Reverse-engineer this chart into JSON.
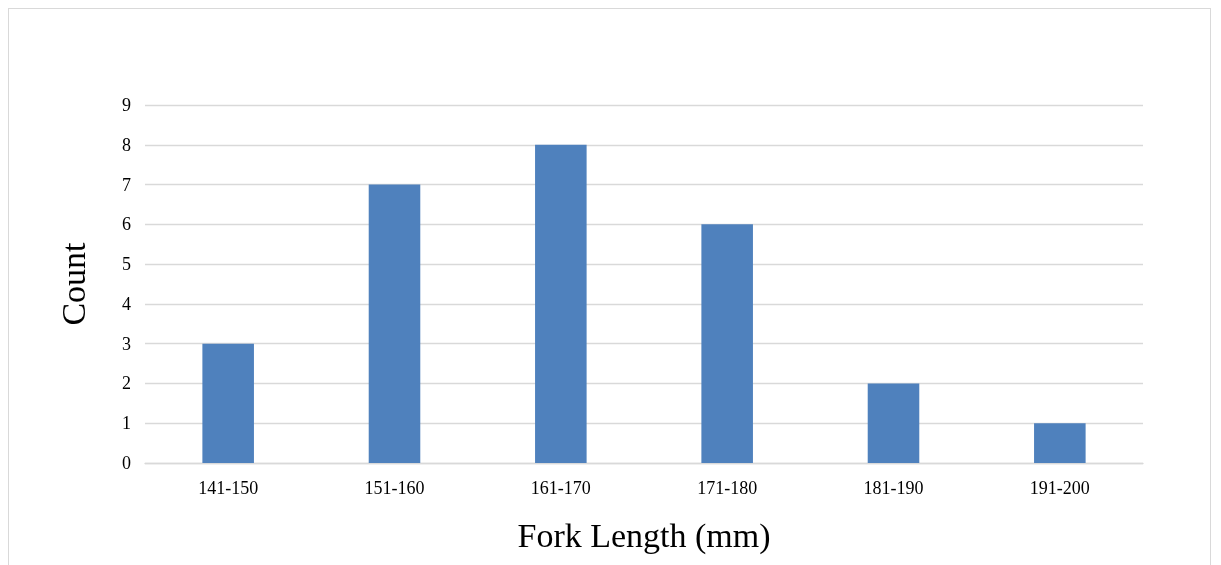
{
  "chart_data": {
    "type": "bar",
    "xlabel": "Fork Length (mm)",
    "ylabel": "Count",
    "categories": [
      "141-150",
      "151-160",
      "161-170",
      "171-180",
      "181-190",
      "191-200"
    ],
    "values": [
      3,
      7,
      8,
      6,
      2,
      1
    ],
    "color": "#4f81bd",
    "ylim": [
      0,
      9
    ],
    "yticks": [
      0,
      1,
      2,
      3,
      4,
      5,
      6,
      7,
      8,
      9
    ],
    "grid": "y"
  }
}
